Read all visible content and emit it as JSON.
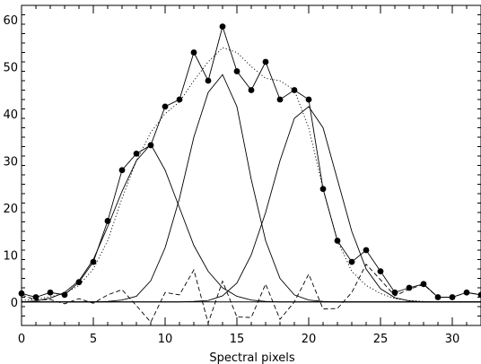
{
  "chart_data": {
    "type": "line",
    "title": "",
    "xlabel": "Spectral pixels",
    "ylabel": "",
    "xlim": [
      0,
      32
    ],
    "ylim": [
      -5,
      63
    ],
    "xticks": [
      0,
      5,
      10,
      15,
      20,
      25,
      30
    ],
    "yticks": [
      0,
      10,
      20,
      30,
      40,
      50,
      60
    ],
    "grid": false,
    "colors": {
      "line": "#000000",
      "background": "#ffffff"
    },
    "x": [
      0,
      1,
      2,
      3,
      4,
      5,
      6,
      7,
      8,
      9,
      10,
      11,
      12,
      13,
      14,
      15,
      16,
      17,
      18,
      19,
      20,
      21,
      22,
      23,
      24,
      25,
      26,
      27,
      28,
      29,
      30,
      31,
      32
    ],
    "series": [
      {
        "style": "solid-with-filled-dots",
        "values": [
          1.8,
          1.0,
          2.0,
          1.5,
          4.2,
          8.5,
          17.2,
          28.0,
          31.5,
          33.3,
          41.5,
          43.0,
          53.0,
          47.0,
          58.5,
          49.0,
          45.0,
          51.0,
          43.0,
          45.0,
          43.0,
          24.0,
          13.0,
          8.5,
          11.0,
          6.5,
          2.0,
          3.0,
          3.8,
          1.0,
          1.0,
          2.0,
          1.5
        ]
      },
      {
        "style": "dotted",
        "values": [
          0.3,
          0.6,
          1.1,
          1.8,
          3.5,
          7.0,
          13.0,
          22.0,
          30.0,
          36.0,
          40.0,
          42.5,
          47.0,
          51.0,
          54.0,
          53.0,
          50.0,
          47.5,
          47.0,
          45.0,
          37.0,
          24.0,
          13.0,
          6.5,
          3.5,
          1.8,
          0.7,
          0.3,
          0.1,
          0.0,
          0.0,
          0.0,
          0.0
        ]
      },
      {
        "style": "solid",
        "values": [
          0.0,
          0.2,
          0.8,
          2.0,
          4.5,
          9.0,
          16.0,
          23.5,
          30.0,
          33.5,
          28.0,
          20.0,
          12.0,
          6.5,
          3.0,
          1.2,
          0.4,
          0.1,
          0.0,
          0.0,
          0.0,
          0.0,
          0.0,
          0.0,
          0.0,
          0.0,
          0.0,
          0.0,
          0.0,
          0.0,
          0.0,
          0.0,
          0.0
        ]
      },
      {
        "style": "solid",
        "values": [
          0.0,
          0.0,
          0.0,
          0.0,
          0.0,
          0.0,
          0.1,
          0.4,
          1.2,
          4.5,
          11.5,
          22.0,
          35.0,
          44.5,
          48.3,
          41.5,
          26.0,
          13.0,
          5.0,
          1.5,
          0.4,
          0.1,
          0.0,
          0.0,
          0.0,
          0.0,
          0.0,
          0.0,
          0.0,
          0.0,
          0.0,
          0.0,
          0.0
        ]
      },
      {
        "style": "solid",
        "values": [
          0.0,
          0.0,
          0.0,
          0.0,
          0.0,
          0.0,
          0.0,
          0.0,
          0.0,
          0.0,
          0.0,
          0.0,
          0.1,
          0.3,
          1.3,
          4.0,
          10.0,
          19.0,
          30.0,
          39.0,
          41.5,
          37.0,
          26.0,
          15.0,
          7.0,
          2.8,
          0.9,
          0.2,
          0.0,
          0.0,
          0.0,
          0.0,
          0.0
        ]
      },
      {
        "style": "dashed",
        "values": [
          1.5,
          0.4,
          0.5,
          -0.4,
          0.7,
          -0.3,
          1.5,
          2.6,
          -0.8,
          -4.3,
          2.0,
          1.5,
          6.8,
          -4.5,
          4.4,
          -3.2,
          -3.3,
          3.8,
          -3.7,
          0.0,
          5.9,
          -1.5,
          -1.4,
          2.0,
          8.0,
          4.7,
          1.3,
          2.7,
          3.7,
          1.0,
          1.0,
          2.0,
          1.5
        ]
      }
    ],
    "zero_line": 0
  }
}
